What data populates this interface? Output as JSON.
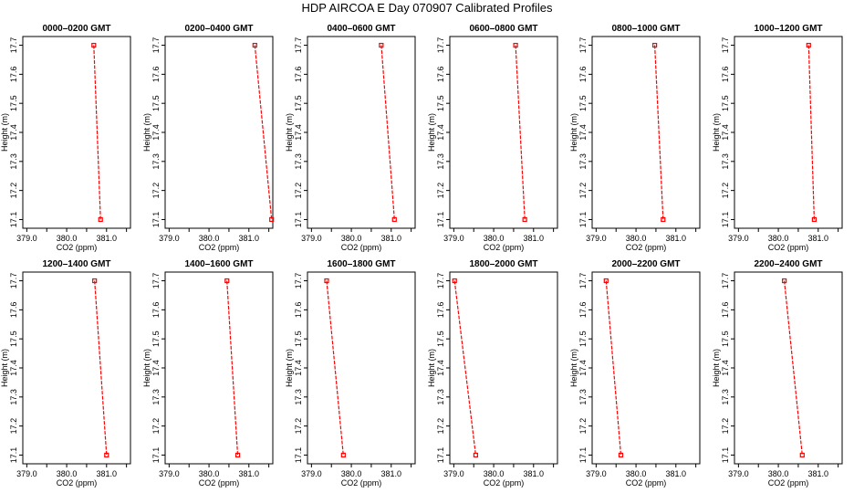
{
  "title": "HDP  AIRCOA E  Day 070907  Calibrated Profiles",
  "chart_data": [
    {
      "type": "line",
      "title": "0000–0200 GMT",
      "xlabel": "CO2 (ppm)",
      "ylabel": "Height (m)",
      "xlim": [
        378.9,
        381.6
      ],
      "ylim": [
        17.07,
        17.73
      ],
      "xticks": [
        "379.0",
        "380.0",
        "381.0"
      ],
      "yticks": [
        "17.1",
        "17.2",
        "17.3",
        "17.4",
        "17.5",
        "17.6",
        "17.7"
      ],
      "grid": false,
      "series": [
        {
          "x": [
            380.68,
            380.85
          ],
          "y": [
            17.7,
            17.1
          ],
          "color": "#ff0000"
        }
      ]
    },
    {
      "type": "line",
      "title": "0200–0400 GMT",
      "xlabel": "CO2 (ppm)",
      "ylabel": "Height (m)",
      "xlim": [
        378.9,
        381.6
      ],
      "ylim": [
        17.07,
        17.73
      ],
      "xticks": [
        "379.0",
        "380.0",
        "381.0"
      ],
      "yticks": [
        "17.1",
        "17.2",
        "17.3",
        "17.4",
        "17.5",
        "17.6",
        "17.7"
      ],
      "grid": false,
      "series": [
        {
          "x": [
            381.15,
            381.57
          ],
          "y": [
            17.7,
            17.1
          ],
          "color": "#ff0000"
        }
      ]
    },
    {
      "type": "line",
      "title": "0400–0600 GMT",
      "xlabel": "CO2 (ppm)",
      "ylabel": "Height (m)",
      "xlim": [
        378.9,
        381.6
      ],
      "ylim": [
        17.07,
        17.73
      ],
      "xticks": [
        "379.0",
        "380.0",
        "381.0"
      ],
      "yticks": [
        "17.1",
        "17.2",
        "17.3",
        "17.4",
        "17.5",
        "17.6",
        "17.7"
      ],
      "grid": false,
      "series": [
        {
          "x": [
            380.75,
            381.08
          ],
          "y": [
            17.7,
            17.1
          ],
          "color": "#ff0000"
        }
      ]
    },
    {
      "type": "line",
      "title": "0600–0800 GMT",
      "xlabel": "CO2 (ppm)",
      "ylabel": "Height (m)",
      "xlim": [
        378.9,
        381.6
      ],
      "ylim": [
        17.07,
        17.73
      ],
      "xticks": [
        "379.0",
        "380.0",
        "381.0"
      ],
      "yticks": [
        "17.1",
        "17.2",
        "17.3",
        "17.4",
        "17.5",
        "17.6",
        "17.7"
      ],
      "grid": false,
      "series": [
        {
          "x": [
            380.55,
            380.78
          ],
          "y": [
            17.7,
            17.1
          ],
          "color": "#ff0000"
        }
      ]
    },
    {
      "type": "line",
      "title": "0800–1000 GMT",
      "xlabel": "CO2 (ppm)",
      "ylabel": "Height (m)",
      "xlim": [
        378.9,
        381.6
      ],
      "ylim": [
        17.07,
        17.73
      ],
      "xticks": [
        "379.0",
        "380.0",
        "381.0"
      ],
      "yticks": [
        "17.1",
        "17.2",
        "17.3",
        "17.4",
        "17.5",
        "17.6",
        "17.7"
      ],
      "grid": false,
      "series": [
        {
          "x": [
            380.47,
            380.68
          ],
          "y": [
            17.7,
            17.1
          ],
          "color": "#ff0000"
        }
      ]
    },
    {
      "type": "line",
      "title": "1000–1200 GMT",
      "xlabel": "CO2 (ppm)",
      "ylabel": "Height (m)",
      "xlim": [
        378.9,
        381.6
      ],
      "ylim": [
        17.07,
        17.73
      ],
      "xticks": [
        "379.0",
        "380.0",
        "381.0"
      ],
      "yticks": [
        "17.1",
        "17.2",
        "17.3",
        "17.4",
        "17.5",
        "17.6",
        "17.7"
      ],
      "grid": false,
      "series": [
        {
          "x": [
            380.76,
            380.9
          ],
          "y": [
            17.7,
            17.1
          ],
          "color": "#ff0000"
        }
      ]
    },
    {
      "type": "line",
      "title": "1200–1400 GMT",
      "xlabel": "CO2 (ppm)",
      "ylabel": "Height (m)",
      "xlim": [
        378.9,
        381.6
      ],
      "ylim": [
        17.07,
        17.73
      ],
      "xticks": [
        "379.0",
        "380.0",
        "381.0"
      ],
      "yticks": [
        "17.1",
        "17.2",
        "17.3",
        "17.4",
        "17.5",
        "17.6",
        "17.7"
      ],
      "grid": false,
      "series": [
        {
          "x": [
            380.7,
            381.0
          ],
          "y": [
            17.7,
            17.1
          ],
          "color": "#ff0000"
        }
      ]
    },
    {
      "type": "line",
      "title": "1400–1600 GMT",
      "xlabel": "CO2 (ppm)",
      "ylabel": "Height (m)",
      "xlim": [
        378.9,
        381.6
      ],
      "ylim": [
        17.07,
        17.73
      ],
      "xticks": [
        "379.0",
        "380.0",
        "381.0"
      ],
      "yticks": [
        "17.1",
        "17.2",
        "17.3",
        "17.4",
        "17.5",
        "17.6",
        "17.7"
      ],
      "grid": false,
      "series": [
        {
          "x": [
            380.45,
            380.72
          ],
          "y": [
            17.7,
            17.1
          ],
          "color": "#ff0000"
        }
      ]
    },
    {
      "type": "line",
      "title": "1600–1800 GMT",
      "xlabel": "CO2 (ppm)",
      "ylabel": "Height (m)",
      "xlim": [
        378.9,
        381.6
      ],
      "ylim": [
        17.07,
        17.73
      ],
      "xticks": [
        "379.0",
        "380.0",
        "381.0"
      ],
      "yticks": [
        "17.1",
        "17.2",
        "17.3",
        "17.4",
        "17.5",
        "17.6",
        "17.7"
      ],
      "grid": false,
      "series": [
        {
          "x": [
            379.38,
            379.8
          ],
          "y": [
            17.7,
            17.1
          ],
          "color": "#ff0000"
        }
      ]
    },
    {
      "type": "line",
      "title": "1800–2000 GMT",
      "xlabel": "CO2 (ppm)",
      "ylabel": "Height (m)",
      "xlim": [
        378.9,
        381.6
      ],
      "ylim": [
        17.07,
        17.73
      ],
      "xticks": [
        "379.0",
        "380.0",
        "381.0"
      ],
      "yticks": [
        "17.1",
        "17.2",
        "17.3",
        "17.4",
        "17.5",
        "17.6",
        "17.7"
      ],
      "grid": false,
      "series": [
        {
          "x": [
            379.02,
            379.55
          ],
          "y": [
            17.7,
            17.1
          ],
          "color": "#ff0000"
        }
      ]
    },
    {
      "type": "line",
      "title": "2000–2200 GMT",
      "xlabel": "CO2 (ppm)",
      "ylabel": "Height (m)",
      "xlim": [
        378.9,
        381.6
      ],
      "ylim": [
        17.07,
        17.73
      ],
      "xticks": [
        "379.0",
        "380.0",
        "381.0"
      ],
      "yticks": [
        "17.1",
        "17.2",
        "17.3",
        "17.4",
        "17.5",
        "17.6",
        "17.7"
      ],
      "grid": false,
      "series": [
        {
          "x": [
            379.25,
            379.62
          ],
          "y": [
            17.7,
            17.1
          ],
          "color": "#ff0000"
        }
      ]
    },
    {
      "type": "line",
      "title": "2200–2400 GMT",
      "xlabel": "CO2 (ppm)",
      "ylabel": "Height (m)",
      "xlim": [
        378.9,
        381.6
      ],
      "ylim": [
        17.07,
        17.73
      ],
      "xticks": [
        "379.0",
        "380.0",
        "381.0"
      ],
      "yticks": [
        "17.1",
        "17.2",
        "17.3",
        "17.4",
        "17.5",
        "17.6",
        "17.7"
      ],
      "grid": false,
      "series": [
        {
          "x": [
            380.15,
            380.6
          ],
          "y": [
            17.7,
            17.1
          ],
          "color": "#ff0000"
        }
      ]
    }
  ]
}
